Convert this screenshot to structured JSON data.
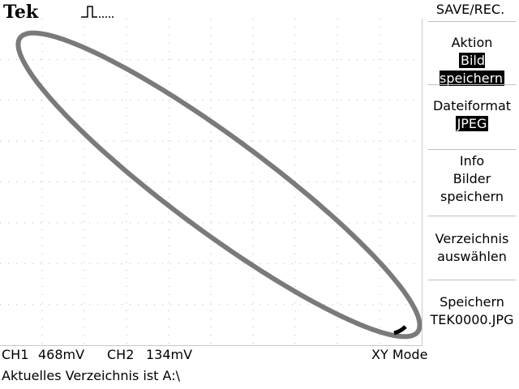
{
  "header": {
    "brand": "Tek",
    "trigger_icon": "pulse-icon"
  },
  "menu": {
    "title": "SAVE/REC.",
    "items": [
      {
        "label": "Aktion",
        "value": "Bild speichern"
      },
      {
        "label": "Dateiformat",
        "value": "JPEG"
      },
      {
        "line1": "Info",
        "line2": "Bilder",
        "line3": "speichern"
      },
      {
        "line1": "Verzeichnis",
        "line2": "auswählen"
      },
      {
        "line1": "Speichern",
        "line2": "TEK0000.JPG"
      }
    ]
  },
  "status": {
    "ch1_label": "CH1",
    "ch1_value": "468mV",
    "ch2_label": "CH2",
    "ch2_value": "134mV",
    "mode": "XY Mode"
  },
  "message": "Aktuelles Verzeichnis ist A:\\",
  "colors": {
    "trace": "#7a7a7a",
    "grid": "#b4b4b4"
  }
}
